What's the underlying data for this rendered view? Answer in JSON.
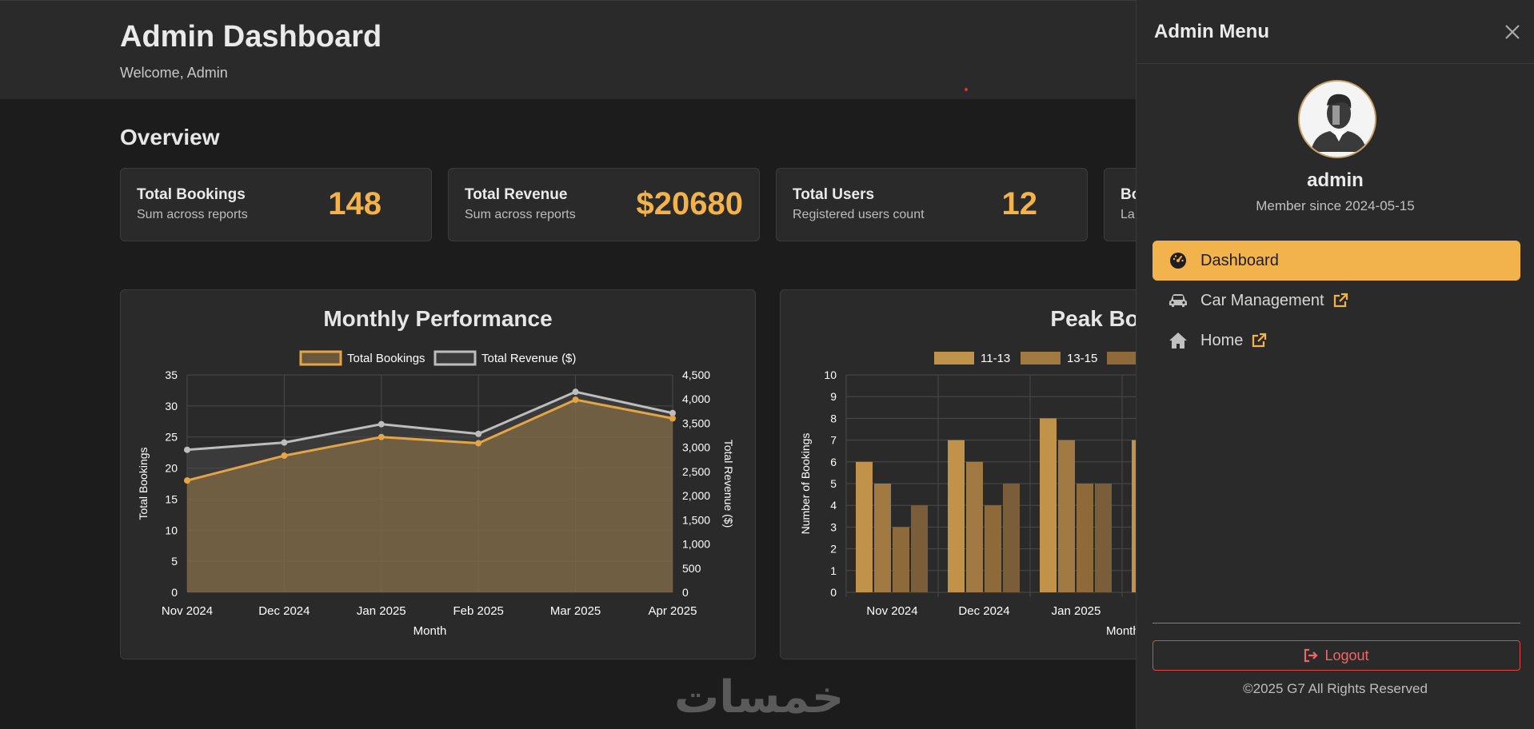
{
  "header": {
    "title": "Admin Dashboard",
    "welcome": "Welcome, Admin"
  },
  "overview": {
    "title": "Overview",
    "cards": [
      {
        "title": "Total Bookings",
        "subtitle": "Sum across reports",
        "value": "148"
      },
      {
        "title": "Total Revenue",
        "subtitle": "Sum across reports",
        "value": "$20680"
      },
      {
        "title": "Total Users",
        "subtitle": "Registered users count",
        "value": "12"
      },
      {
        "title": "Bo",
        "subtitle": "La",
        "value": ""
      }
    ]
  },
  "chart_data": [
    {
      "type": "line",
      "title": "Monthly Performance",
      "categories": [
        "Nov 2024",
        "Dec 2024",
        "Jan 2025",
        "Feb 2025",
        "Mar 2025",
        "Apr 2025"
      ],
      "xlabel": "Month",
      "ylabel": "Total Bookings",
      "y2label": "Total Revenue ($)",
      "ylim": [
        0,
        35
      ],
      "y2lim": [
        0,
        4500
      ],
      "yticks": [
        "0",
        "5",
        "10",
        "15",
        "20",
        "25",
        "30",
        "35"
      ],
      "y2ticks": [
        "0",
        "500",
        "1,000",
        "1,500",
        "2,000",
        "2,500",
        "3,000",
        "3,500",
        "4,000",
        "4,500"
      ],
      "series": [
        {
          "name": "Total Bookings",
          "values": [
            18,
            22,
            25,
            24,
            31,
            28
          ],
          "color": "#e4a547",
          "axis": "left",
          "fill": true
        },
        {
          "name": "Total Revenue ($)",
          "values": [
            2950,
            3100,
            3480,
            3280,
            4150,
            3710
          ],
          "color": "#bdbdbd",
          "axis": "right",
          "fill": true
        }
      ],
      "legend": "top",
      "grid": true
    },
    {
      "type": "bar",
      "title": "Peak Booking",
      "categories": [
        "Nov 2024",
        "Dec 2024",
        "Jan 2025"
      ],
      "xlabel": "Month",
      "ylabel": "Number of Bookings",
      "ylim": [
        0,
        10
      ],
      "yticks": [
        "0",
        "1",
        "2",
        "3",
        "4",
        "5",
        "6",
        "7",
        "8",
        "9",
        "10"
      ],
      "series": [
        {
          "name": "11-13",
          "values": [
            6,
            7,
            8
          ],
          "color": "#c1934a"
        },
        {
          "name": "13-15",
          "values": [
            5,
            6,
            7
          ],
          "color": "#a17a43"
        },
        {
          "name": "",
          "values": [
            3,
            4,
            5
          ],
          "color": "#8e6a3a"
        },
        {
          "name": "",
          "values": [
            4,
            5,
            5
          ],
          "color": "#7a5e3a"
        }
      ],
      "partial_next_value": 7,
      "legend": "top",
      "grid": true
    }
  ],
  "watermark": "خمسات",
  "drawer": {
    "title": "Admin Menu",
    "username": "admin",
    "member_since": "Member since 2024-05-15",
    "nav": [
      {
        "label": "Dashboard",
        "icon": "gauge-icon",
        "active": true,
        "external": false
      },
      {
        "label": "Car Management",
        "icon": "car-icon",
        "active": false,
        "external": true
      },
      {
        "label": "Home",
        "icon": "home-icon",
        "active": false,
        "external": true
      }
    ],
    "logout": "Logout",
    "copyright": "©2025 G7 All Rights Reserved"
  },
  "colors": {
    "accent": "#f3b34c",
    "danger": "#e04848",
    "background": "#1c1c1c",
    "panel": "#2a2a2a"
  }
}
